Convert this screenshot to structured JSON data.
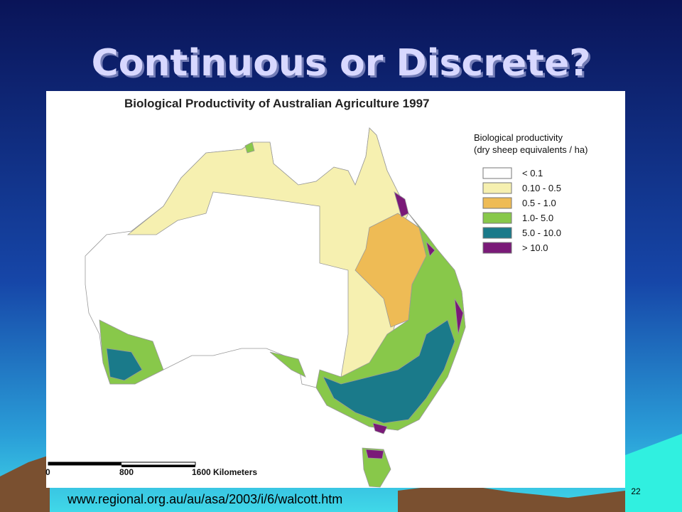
{
  "slide": {
    "title": "Continuous or Discrete?",
    "source": "www.regional.org.au/au/asa/2003/i/6/walcott.htm",
    "number": "22"
  },
  "map": {
    "title": "Biological Productivity of Australian Agriculture 1997",
    "legend": {
      "title": [
        "Biological  productivity",
        "(dry sheep equivalents / ha)"
      ],
      "items": [
        {
          "label": "< 0.1",
          "color": "#ffffff"
        },
        {
          "label": "0.10 - 0.5",
          "color": "#f6f0b0"
        },
        {
          "label": "0.5 - 1.0",
          "color": "#eebb55"
        },
        {
          "label": "1.0- 5.0",
          "color": "#88c84a"
        },
        {
          "label": "5.0 - 10.0",
          "color": "#1a7a8a"
        },
        {
          "label": "> 10.0",
          "color": "#7a1a78"
        }
      ]
    },
    "scale": [
      "0",
      "800",
      "1600 Kilometers"
    ]
  }
}
